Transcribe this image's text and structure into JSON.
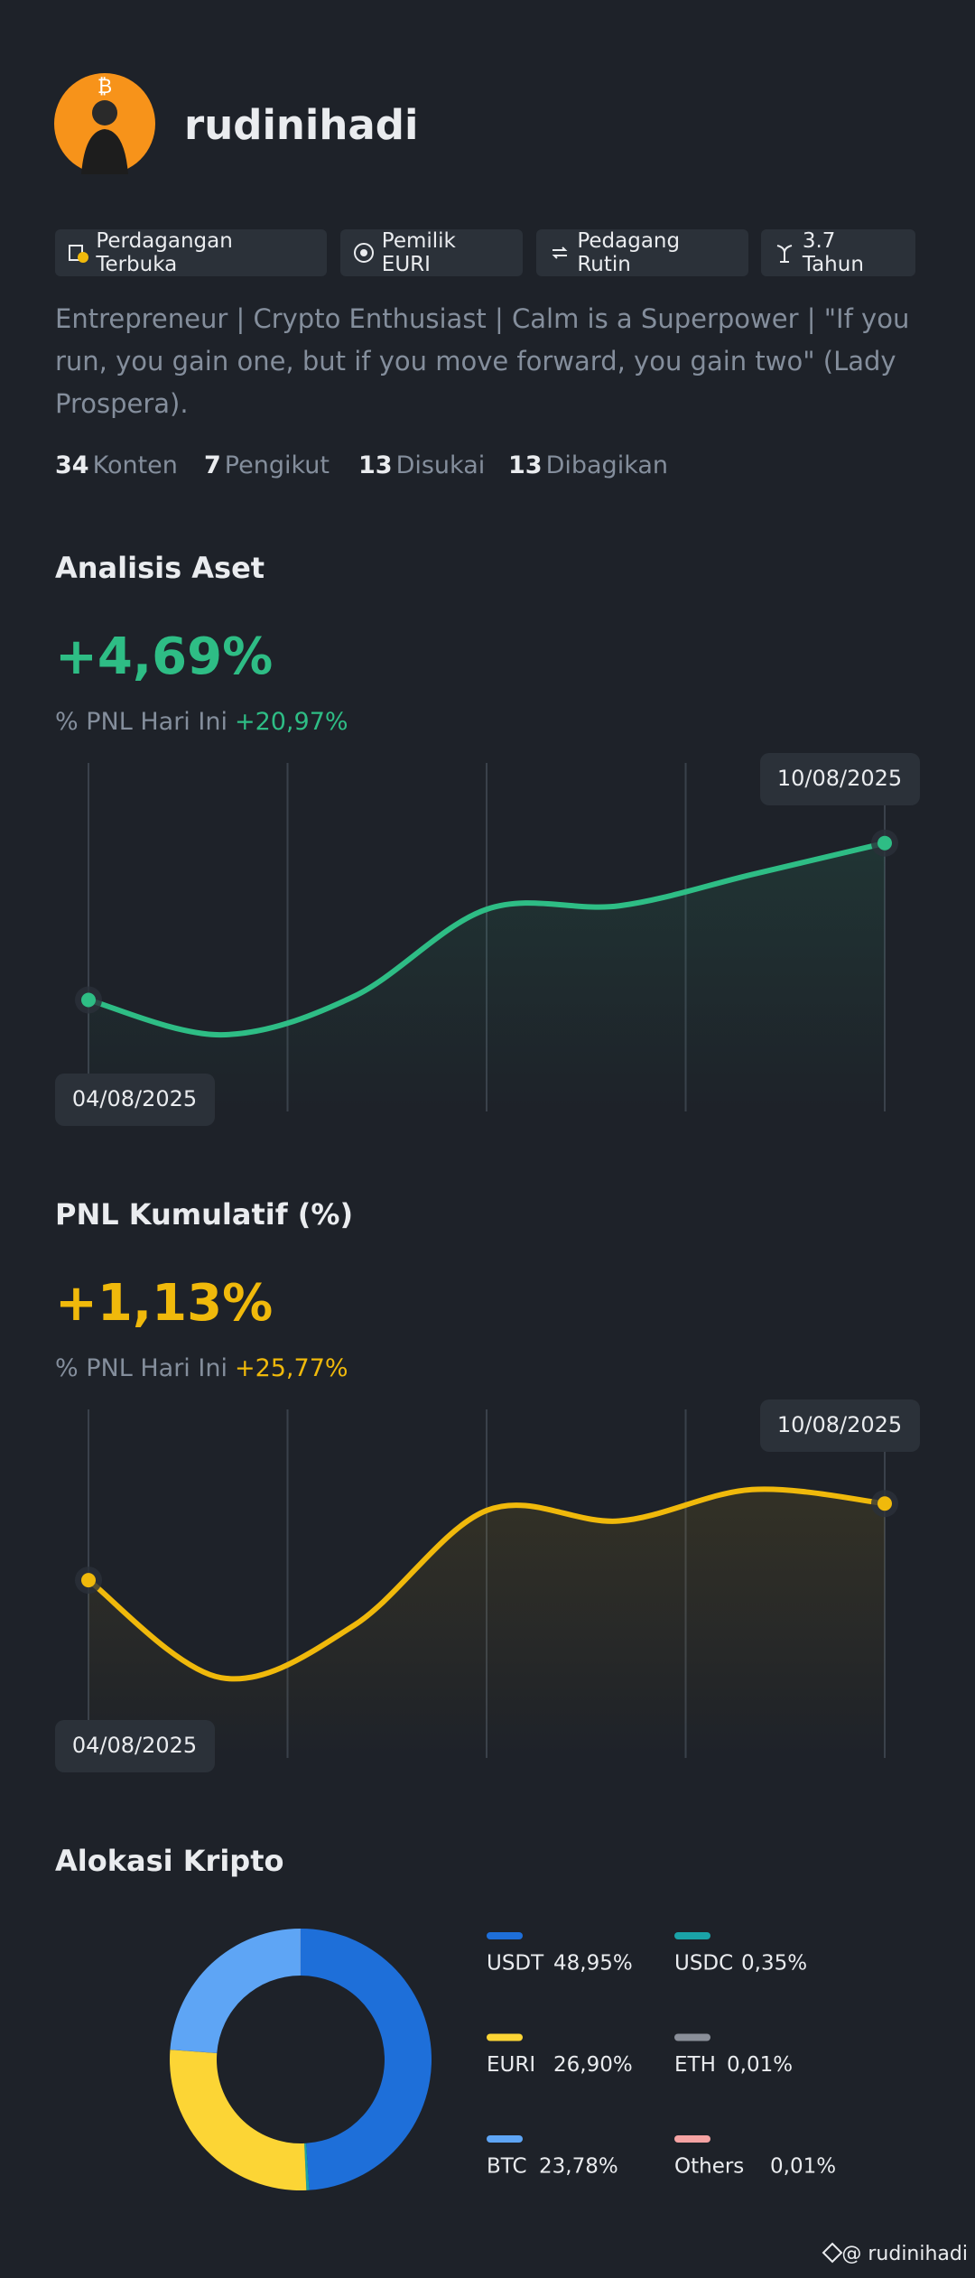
{
  "profile": {
    "username": "rudinihadi",
    "badges": [
      "Perdagangan Terbuka",
      "Pemilik EURI",
      "Pedagang Rutin",
      "3.7 Tahun"
    ],
    "bio": "Entrepreneur | Crypto Enthusiast | Calm is a Superpower | \"If you run, you gain one, but if you move forward, you gain two\" (Lady Prospera).",
    "stats": [
      {
        "value": 34,
        "label": "Konten"
      },
      {
        "value": 7,
        "label": "Pengikut"
      },
      {
        "value": 13,
        "label": "Disukai"
      },
      {
        "value": 13,
        "label": "Dibagikan"
      }
    ]
  },
  "chart_data": [
    {
      "type": "line",
      "title": "Analisis Aset",
      "headline": "+4,69%",
      "subtitle_label": "% PNL Hari Ini",
      "subtitle_value": "+20,97%",
      "x": [
        "04/08/2025",
        null,
        null,
        null,
        null,
        null,
        "10/08/2025"
      ],
      "ylim": [
        0,
        100
      ],
      "series": [
        {
          "color": "#2ebd85",
          "values": [
            32,
            22,
            33,
            58,
            59,
            68,
            77
          ]
        }
      ]
    },
    {
      "type": "line",
      "title": "PNL Kumulatif (%)",
      "headline": "+1,13%",
      "subtitle_label": "% PNL Hari Ini",
      "subtitle_value": "+25,77%",
      "x": [
        "04/08/2025",
        null,
        null,
        null,
        null,
        null,
        "10/08/2025"
      ],
      "ylim": [
        0,
        100
      ],
      "series": [
        {
          "color": "#f0b90b",
          "values": [
            51,
            23,
            38,
            71,
            68,
            77,
            73
          ]
        }
      ]
    },
    {
      "type": "donut",
      "title": "Alokasi Kripto",
      "categories": [
        "USDT",
        "USDC",
        "EURI",
        "ETH",
        "BTC",
        "Others"
      ],
      "values": [
        48.95,
        0.35,
        26.9,
        0.01,
        23.78,
        0.01
      ],
      "value_labels": [
        "48,95%",
        "0,35%",
        "26,90%",
        "0,01%",
        "23,78%",
        "0,01%"
      ],
      "colors": [
        "#1e6fd9",
        "#1aa3a8",
        "#fcd535",
        "#8a8f99",
        "#5ea5f5",
        "#f5a3a3"
      ]
    }
  ],
  "watermark": "@ rudinihadi"
}
